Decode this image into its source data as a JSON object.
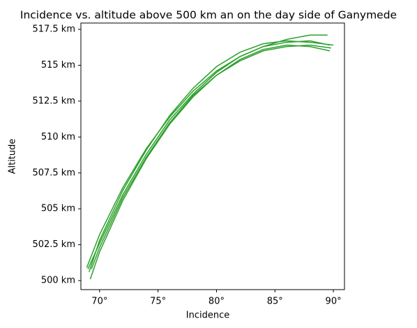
{
  "chart_data": {
    "type": "line",
    "title": "Incidence vs. altitude above 500 km an on the day side of Ganymede",
    "xlabel": "Incidence",
    "ylabel": "Altitude",
    "xlim": [
      68.4,
      90.95
    ],
    "ylim": [
      499.37,
      517.94
    ],
    "xticks": [
      {
        "value": 70,
        "label": "70°"
      },
      {
        "value": 75,
        "label": "75°"
      },
      {
        "value": 80,
        "label": "80°"
      },
      {
        "value": 85,
        "label": "85°"
      },
      {
        "value": 90,
        "label": "90°"
      }
    ],
    "yticks": [
      {
        "value": 500,
        "label": "500 km"
      },
      {
        "value": 502.5,
        "label": "502.5 km"
      },
      {
        "value": 505,
        "label": "505 km"
      },
      {
        "value": 507.5,
        "label": "507.5 km"
      },
      {
        "value": 510,
        "label": "510 km"
      },
      {
        "value": 512.5,
        "label": "512.5 km"
      },
      {
        "value": 515,
        "label": "515 km"
      },
      {
        "value": 517.5,
        "label": "517.5 km"
      }
    ],
    "grid": false,
    "series": [
      {
        "color": "#2ca02c",
        "x": [
          68.9,
          70,
          72,
          74,
          76,
          78,
          80,
          82,
          84,
          86,
          88,
          89.5
        ],
        "values": [
          500.9,
          503.2,
          506.5,
          509.2,
          511.4,
          513.2,
          514.6,
          515.6,
          516.3,
          516.8,
          517.1,
          517.1
        ]
      },
      {
        "color": "#2ca02c",
        "x": [
          69.2,
          70,
          72,
          74,
          76,
          78,
          80,
          82,
          84,
          86,
          88,
          89.8
        ],
        "values": [
          500.1,
          502.0,
          505.6,
          508.5,
          510.9,
          512.8,
          514.3,
          515.3,
          516.0,
          516.3,
          516.4,
          516.2
        ]
      },
      {
        "color": "#2ca02c",
        "x": [
          69.0,
          70,
          72,
          74,
          76,
          78,
          80,
          82,
          84,
          86,
          88,
          89.7
        ],
        "values": [
          500.8,
          502.6,
          506.0,
          508.8,
          511.2,
          513.0,
          514.5,
          515.6,
          516.3,
          516.6,
          516.7,
          516.4
        ]
      },
      {
        "color": "#2ca02c",
        "x": [
          69.3,
          70,
          72,
          74,
          76,
          78,
          80,
          82,
          84,
          86,
          88,
          89.7
        ],
        "values": [
          500.8,
          502.3,
          505.8,
          508.6,
          511.0,
          512.9,
          514.3,
          515.4,
          516.1,
          516.4,
          516.3,
          516.0
        ]
      },
      {
        "color": "#2ca02c",
        "x": [
          69.1,
          70,
          72,
          74,
          76,
          78,
          80,
          82,
          84,
          86,
          88,
          90
        ],
        "values": [
          500.6,
          502.8,
          506.3,
          509.1,
          511.5,
          513.4,
          514.9,
          515.9,
          516.5,
          516.7,
          516.6,
          516.4
        ]
      }
    ]
  }
}
